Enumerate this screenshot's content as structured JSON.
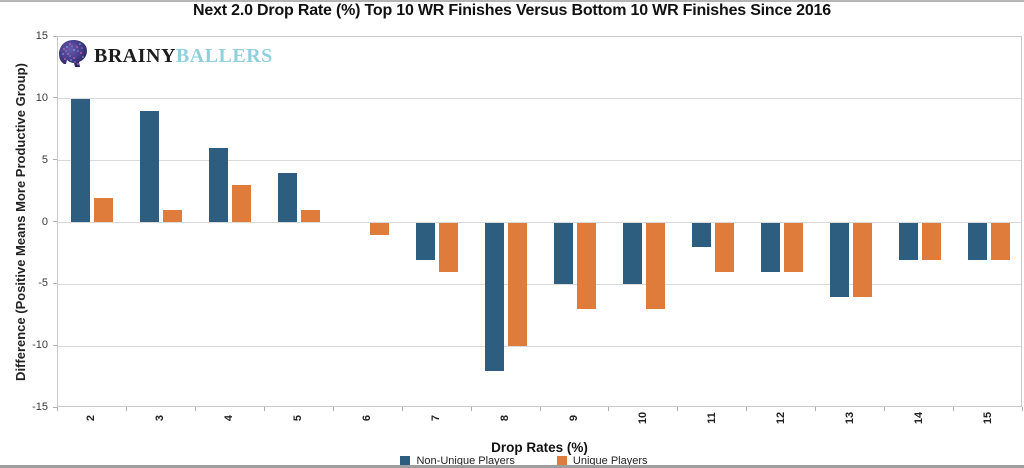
{
  "page": {
    "title": "Next 2.0 Drop Rate (%) Top 10 WR Finishes Versus Bottom 10 WR Finishes Since 2016"
  },
  "logo": {
    "icon": "football-helmet-icon",
    "text_black": "BRAINY",
    "text_blue": "BALLERS",
    "blue_color": "#92cfdc"
  },
  "chart_data": {
    "type": "bar",
    "title": "Next 2.0 Drop Rate (%) Top 10 WR Finishes Versus Bottom 10 WR Finishes Since 2016",
    "xlabel": "Drop Rates (%)",
    "ylabel": "Difference (Positive Means More Productive Group)",
    "categories": [
      "2",
      "3",
      "4",
      "5",
      "6",
      "7",
      "8",
      "9",
      "10",
      "11",
      "12",
      "13",
      "14",
      "15"
    ],
    "series": [
      {
        "name": "Non-Unique Players",
        "color": "#2e5e7f",
        "values": [
          10,
          9,
          6,
          4,
          0,
          -3,
          -12,
          -5,
          -5,
          -2,
          -4,
          -6,
          -3,
          -3
        ]
      },
      {
        "name": "Unique Players",
        "color": "#df7c3c",
        "values": [
          2,
          1,
          3,
          1,
          -1,
          -4,
          -10,
          -7,
          -7,
          -4,
          -4,
          -6,
          -3,
          -3
        ]
      }
    ],
    "ylim": [
      -15,
      15
    ],
    "yticks": [
      15,
      10,
      5,
      0,
      -5,
      -10,
      -15
    ],
    "grid": true,
    "gridline_color": "#d9d9d9",
    "legend_position": "bottom"
  }
}
